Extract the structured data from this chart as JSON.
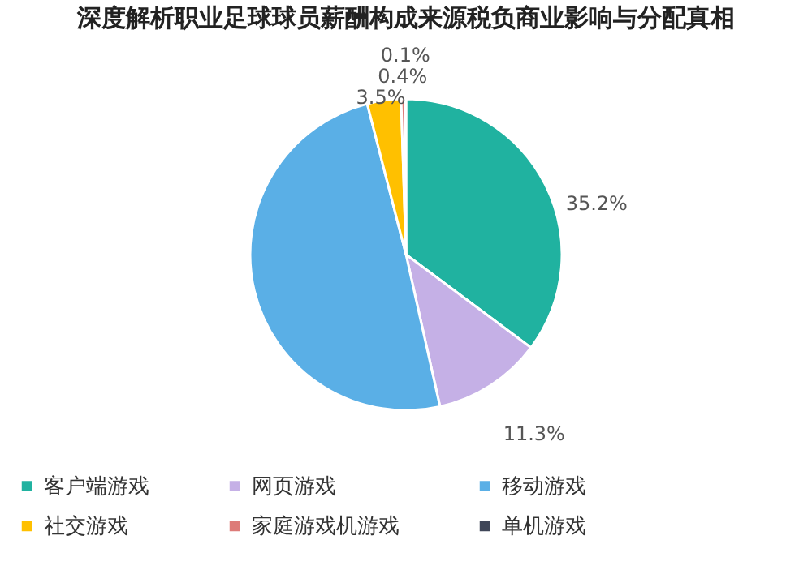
{
  "chart_data": {
    "type": "pie",
    "title": "深度解析职业足球球员薪酬构成来源税负商业影响与分配真相",
    "categories": [
      "客户端游戏",
      "网页游戏",
      "移动游戏",
      "社交游戏",
      "家庭游戏机游戏",
      "单机游戏"
    ],
    "values": [
      35.2,
      11.3,
      49.5,
      3.5,
      0.4,
      0.1
    ],
    "colors": [
      "#20b2a0",
      "#c5b0e6",
      "#5aafe6",
      "#ffc000",
      "#dd7b78",
      "#3f4658"
    ],
    "value_labels": [
      "35.2%",
      "11.3%",
      null,
      "3.5%",
      "0.4%",
      "0.1%"
    ],
    "legend": "bottom"
  }
}
